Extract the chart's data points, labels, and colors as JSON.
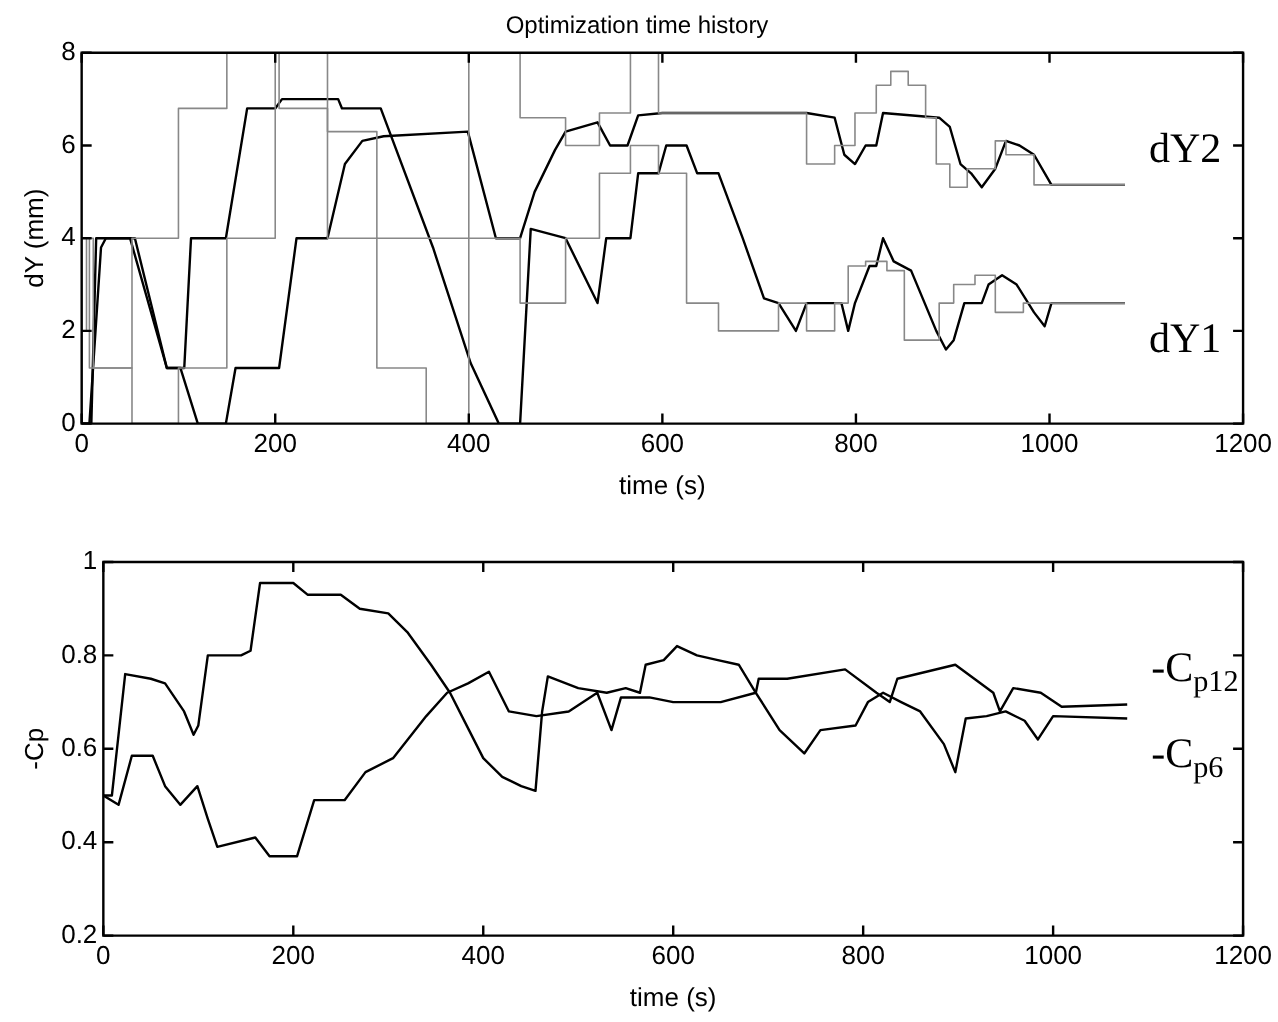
{
  "chart_data": [
    {
      "type": "line",
      "title": "Optimization time history",
      "xlabel": "time (s)",
      "ylabel": "dY (mm)",
      "xlim": [
        0,
        1200
      ],
      "xticks": [
        0,
        200,
        400,
        600,
        800,
        1000,
        1200
      ],
      "ylim": [
        0,
        8
      ],
      "yticks": [
        0,
        2,
        4,
        6,
        8
      ],
      "marker": "none",
      "legend": "right",
      "series": [
        {
          "type": "step",
          "color": "#888888",
          "x": [
            0,
            5,
            12,
            52,
            100,
            150,
            204,
            254,
            305,
            356,
            400,
            453,
            500,
            535,
            567,
            596,
            625,
            658,
            720,
            749,
            778,
            792,
            810,
            832,
            850,
            886,
            901,
            923,
            944,
            973,
            1002,
            1078
          ],
          "values": [
            0,
            2,
            4,
            1.2,
            4,
            6.8,
            8,
            6.8,
            4,
            1.2,
            0,
            4,
            2.6,
            4,
            5.4,
            6.0,
            5.4,
            2.6,
            2.0,
            2.6,
            2.0,
            2.6,
            3.4,
            3.5,
            3.3,
            1.8,
            2.6,
            3.0,
            3.2,
            2.4,
            2.6,
            2.6
          ]
        },
        {
          "type": "step",
          "color": "#888888",
          "x": [
            0,
            8,
            52,
            100,
            150,
            200,
            254,
            305,
            400,
            453,
            500,
            535,
            567,
            596,
            749,
            778,
            799,
            821,
            836,
            854,
            872,
            883,
            897,
            915,
            944,
            955,
            984,
            1002,
            1078
          ],
          "values": [
            0,
            4,
            1.2,
            0,
            1.2,
            4,
            8,
            6.3,
            4,
            8,
            6.6,
            6.0,
            6.7,
            8,
            6.7,
            5.6,
            6.0,
            6.7,
            7.3,
            7.6,
            7.3,
            6.6,
            5.6,
            5.1,
            5.5,
            6.1,
            5.8,
            5.15,
            5.15
          ]
        },
        {
          "name": "dY1",
          "color": "#000000",
          "x": [
            0,
            8,
            20,
            25,
            55,
            88,
            106,
            113,
            149,
            171,
            200,
            207,
            265,
            269,
            309,
            363,
            402,
            431,
            453,
            464,
            500,
            533,
            542,
            567,
            575,
            596,
            604,
            625,
            636,
            658,
            683,
            705,
            720,
            738,
            749,
            785,
            792,
            799,
            814,
            821,
            828,
            839,
            857,
            883,
            893,
            901,
            912,
            930,
            937,
            951,
            966,
            984,
            995,
            1002,
            1078
          ],
          "values": [
            0,
            0,
            3.8,
            4.0,
            4.0,
            1.2,
            1.2,
            4.0,
            4.0,
            6.8,
            6.8,
            7.0,
            7.0,
            6.8,
            6.8,
            3.8,
            1.3,
            0,
            0,
            4.2,
            4.0,
            2.6,
            4.0,
            4.0,
            5.4,
            5.4,
            6.0,
            6.0,
            5.4,
            5.4,
            4.0,
            2.7,
            2.6,
            2.0,
            2.6,
            2.6,
            2.0,
            2.6,
            3.4,
            3.4,
            4.0,
            3.5,
            3.3,
            2.0,
            1.6,
            1.8,
            2.6,
            2.6,
            3.0,
            3.2,
            3.0,
            2.4,
            2.1,
            2.6,
            2.6
          ]
        },
        {
          "name": "dY2",
          "color": "#000000",
          "x": [
            0,
            10,
            15,
            50,
            88,
            102,
            120,
            149,
            159,
            204,
            222,
            254,
            272,
            290,
            312,
            399,
            428,
            453,
            468,
            489,
            500,
            533,
            546,
            564,
            575,
            600,
            749,
            778,
            788,
            799,
            810,
            821,
            828,
            886,
            897,
            908,
            919,
            930,
            944,
            955,
            969,
            984,
            1002,
            1078
          ],
          "values": [
            0,
            0,
            4.0,
            4.0,
            1.2,
            1.2,
            0,
            0,
            1.2,
            1.2,
            4.0,
            4.0,
            5.6,
            6.1,
            6.2,
            6.3,
            4.0,
            4.0,
            5.0,
            5.9,
            6.3,
            6.5,
            6.0,
            6.0,
            6.65,
            6.7,
            6.7,
            6.6,
            5.8,
            5.6,
            6.0,
            6.0,
            6.7,
            6.6,
            6.4,
            5.6,
            5.4,
            5.1,
            5.5,
            6.1,
            6.0,
            5.8,
            5.15,
            5.15
          ]
        }
      ]
    },
    {
      "type": "line",
      "xlabel": "time (s)",
      "ylabel": "-Cp",
      "xlim": [
        0,
        1200
      ],
      "xticks": [
        0,
        200,
        400,
        600,
        800,
        1000,
        1200
      ],
      "ylim": [
        0.2,
        1
      ],
      "yticks": [
        0.2,
        0.4,
        0.6,
        0.8,
        1
      ],
      "marker": "none",
      "legend": "right",
      "series": [
        {
          "name": "-C$_{p12}$",
          "color": "#000000",
          "x": [
            0,
            16,
            30,
            52,
            65,
            81,
            99,
            110,
            120,
            160,
            175,
            204,
            222,
            254,
            276,
            305,
            340,
            362,
            384,
            406,
            427,
            456,
            490,
            520,
            535,
            545,
            575,
            600,
            650,
            687,
            690,
            720,
            781,
            814,
            828,
            836,
            897,
            937,
            944,
            958,
            987,
            1009,
            1078
          ],
          "values": [
            0.5,
            0.48,
            0.585,
            0.585,
            0.52,
            0.48,
            0.52,
            0.45,
            0.39,
            0.41,
            0.37,
            0.37,
            0.49,
            0.49,
            0.55,
            0.58,
            0.67,
            0.72,
            0.74,
            0.765,
            0.68,
            0.67,
            0.68,
            0.72,
            0.64,
            0.71,
            0.71,
            0.7,
            0.7,
            0.72,
            0.75,
            0.75,
            0.77,
            0.72,
            0.7,
            0.75,
            0.78,
            0.72,
            0.68,
            0.73,
            0.72,
            0.69,
            0.695
          ]
        },
        {
          "name": "-C$_{p6}$",
          "color": "#000000",
          "x": [
            0,
            9,
            23,
            50,
            65,
            85,
            95,
            100,
            110,
            145,
            155,
            165,
            200,
            215,
            250,
            270,
            300,
            320,
            345,
            365,
            385,
            400,
            420,
            440,
            455,
            462,
            468,
            500,
            530,
            550,
            565,
            571,
            590,
            604,
            625,
            647,
            669,
            687,
            712,
            738,
            755,
            792,
            805,
            821,
            840,
            860,
            885,
            897,
            908,
            930,
            950,
            970,
            984,
            1000,
            1078
          ],
          "values": [
            0.5,
            0.5,
            0.76,
            0.75,
            0.74,
            0.68,
            0.63,
            0.65,
            0.8,
            0.8,
            0.81,
            0.955,
            0.955,
            0.93,
            0.93,
            0.9,
            0.89,
            0.85,
            0.78,
            0.72,
            0.64,
            0.58,
            0.54,
            0.52,
            0.51,
            0.68,
            0.755,
            0.73,
            0.72,
            0.73,
            0.72,
            0.78,
            0.79,
            0.82,
            0.8,
            0.79,
            0.78,
            0.72,
            0.64,
            0.59,
            0.64,
            0.65,
            0.7,
            0.72,
            0.7,
            0.68,
            0.61,
            0.55,
            0.665,
            0.67,
            0.68,
            0.66,
            0.62,
            0.67,
            0.665
          ]
        }
      ]
    }
  ]
}
